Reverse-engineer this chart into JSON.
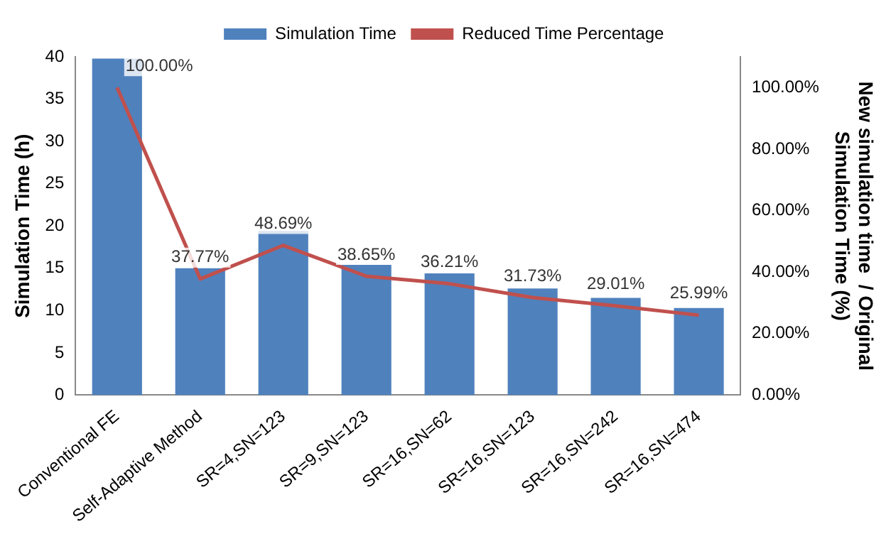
{
  "chart_data": {
    "type": "bar",
    "ylabel": "Simulation Time (h)",
    "y2label": "New simulation time  / Original\nSimulation Time (%)",
    "categories": [
      "Conventional FE",
      "Self-Adaptive Method",
      "SR=4,SN=123",
      "SR=9,SN=123",
      "SR=16,SN=62",
      "SR=16,SN=123",
      "SR=16,SN=242",
      "SR=16,SN=474"
    ],
    "series": [
      {
        "name": "Simulation Time",
        "color": "#4f81bd",
        "values": [
          39.8,
          15.0,
          19.4,
          15.4,
          14.4,
          12.6,
          11.5,
          10.3
        ]
      },
      {
        "name": "Reduced Time Percentage",
        "type": "line",
        "axis": "y2",
        "color": "#c0504d",
        "values": [
          100,
          37.77,
          48.69,
          38.65,
          36.21,
          31.73,
          29.01,
          25.99
        ],
        "value_labels": [
          "100.00%",
          "37.77%",
          "48.69%",
          "38.65%",
          "36.21%",
          "31.73%",
          "29.01%",
          "25.99%"
        ]
      }
    ],
    "ylim": [
      0,
      40
    ],
    "yticks": [
      0,
      5,
      10,
      15,
      20,
      25,
      30,
      35,
      40
    ],
    "y2lim": [
      0,
      110
    ],
    "y2ticks": [
      {
        "value": 0,
        "label": "0.00%"
      },
      {
        "value": 20,
        "label": "20.00%"
      },
      {
        "value": 40,
        "label": "40.00%"
      },
      {
        "value": 60,
        "label": "60.00%"
      },
      {
        "value": 80,
        "label": "80.00%"
      },
      {
        "value": 100,
        "label": "100.00%"
      }
    ],
    "grid": false,
    "legend": "top",
    "marker": "none",
    "line_style": "solid"
  }
}
